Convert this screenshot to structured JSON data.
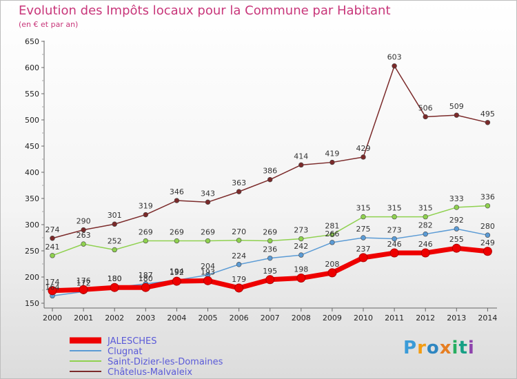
{
  "chart_data": {
    "type": "line",
    "title": "Evolution des Impôts locaux pour la Commune par Habitant",
    "subtitle": "(en € et par an)",
    "xlabel": "",
    "ylabel": "",
    "x": [
      "2000",
      "2001",
      "2002",
      "2003",
      "2004",
      "2005",
      "2006",
      "2007",
      "2008",
      "2009",
      "2010",
      "2011",
      "2012",
      "2013",
      "2014"
    ],
    "ylim": [
      150,
      650
    ],
    "yticks": [
      150,
      200,
      250,
      300,
      350,
      400,
      450,
      500,
      550,
      600,
      650
    ],
    "grid": false,
    "legend_position": "bottom-left",
    "series": [
      {
        "name": "JALESCHES",
        "color": "#ee0000",
        "values": [
          174,
          176,
          180,
          180,
          192,
          193,
          179,
          195,
          198,
          208,
          237,
          246,
          246,
          255,
          249
        ]
      },
      {
        "name": "Clugnat",
        "color": "#5b9bd5",
        "values": [
          164,
          172,
          180,
          187,
          194,
          204,
          224,
          236,
          242,
          266,
          275,
          273,
          282,
          292,
          280
        ]
      },
      {
        "name": "Saint-Dizier-les-Domaines",
        "color": "#8fd14f",
        "values": [
          241,
          263,
          252,
          269,
          269,
          269,
          270,
          269,
          273,
          281,
          315,
          315,
          315,
          333,
          336
        ]
      },
      {
        "name": "Châtelus-Malvaleix",
        "color": "#7b2a2a",
        "values": [
          274,
          290,
          301,
          319,
          346,
          343,
          363,
          386,
          414,
          419,
          429,
          603,
          506,
          509,
          495
        ]
      }
    ]
  },
  "logo": {
    "text": [
      "P",
      "r",
      "o",
      "x",
      "i",
      "t",
      "i"
    ]
  }
}
